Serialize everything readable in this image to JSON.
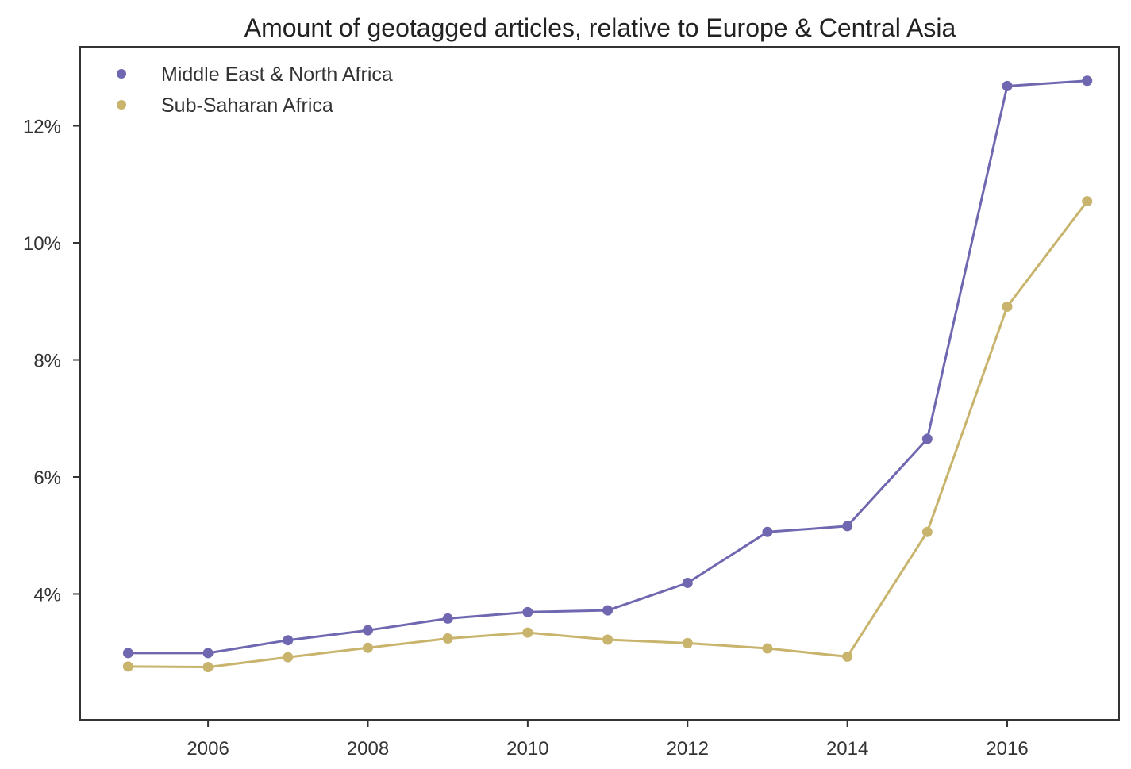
{
  "chart_data": {
    "type": "line",
    "title": "Amount of geotagged articles, relative to Europe & Central Asia",
    "xlabel": "",
    "ylabel": "",
    "x": [
      2005,
      2006,
      2007,
      2008,
      2009,
      2010,
      2011,
      2012,
      2013,
      2014,
      2015,
      2016,
      2017
    ],
    "xlim": [
      2004.4,
      2017.4
    ],
    "ylim": [
      1.85,
      13.35
    ],
    "xticks": [
      2006,
      2008,
      2010,
      2012,
      2014,
      2016
    ],
    "xtick_labels": [
      "2006",
      "2008",
      "2010",
      "2012",
      "2014",
      "2016"
    ],
    "yticks": [
      4,
      6,
      8,
      10,
      12
    ],
    "ytick_labels": [
      "4%",
      "6%",
      "8%",
      "10%",
      "12%"
    ],
    "grid": false,
    "legend_position": "top-left",
    "series": [
      {
        "name": "Middle East & North Africa",
        "color": "#6f68b0",
        "values": [
          2.99,
          2.99,
          3.21,
          3.38,
          3.58,
          3.69,
          3.72,
          4.19,
          5.06,
          5.16,
          6.65,
          12.68,
          12.77
        ]
      },
      {
        "name": "Sub-Saharan Africa",
        "color": "#c8b46c",
        "values": [
          2.76,
          2.75,
          2.92,
          3.08,
          3.24,
          3.34,
          3.22,
          3.16,
          3.07,
          2.93,
          5.06,
          8.91,
          10.71
        ]
      }
    ]
  }
}
